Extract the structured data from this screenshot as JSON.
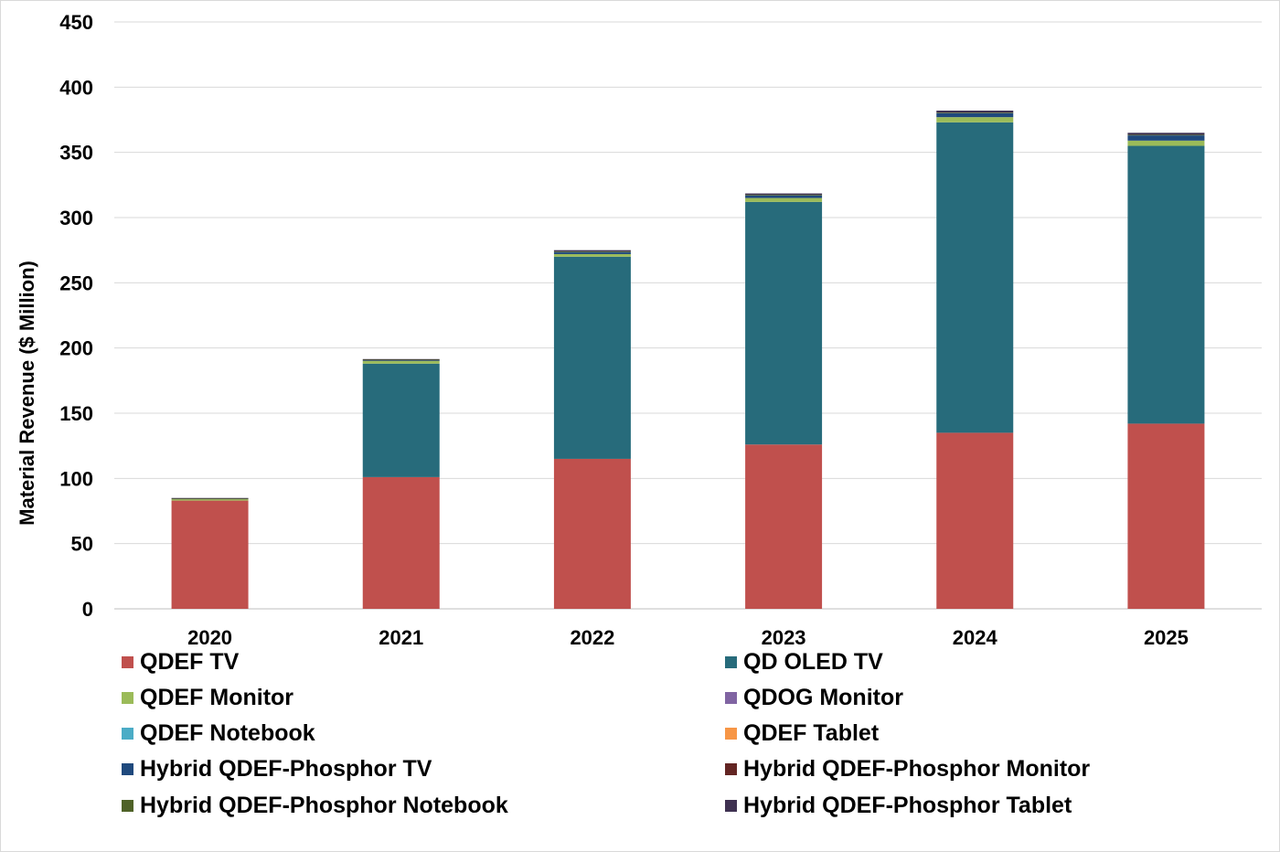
{
  "chart_data": {
    "type": "bar",
    "stacked": true,
    "ylabel": "Material Revenue ($ Million)",
    "ylim": [
      0,
      450
    ],
    "yticks": [
      0,
      50,
      100,
      150,
      200,
      250,
      300,
      350,
      400,
      450
    ],
    "grid": true,
    "legend_position": "bottom",
    "categories": [
      "2020",
      "2021",
      "2022",
      "2023",
      "2024",
      "2025"
    ],
    "series": [
      {
        "name": "QDEF TV",
        "color": "#c0504d",
        "values": [
          83,
          101,
          115,
          126,
          135,
          142
        ]
      },
      {
        "name": "QD OLED TV",
        "color": "#276b7b",
        "values": [
          0,
          87,
          155,
          186,
          238,
          213
        ]
      },
      {
        "name": "QDEF Monitor",
        "color": "#9bbb59",
        "values": [
          1,
          2,
          2,
          3,
          4,
          4
        ]
      },
      {
        "name": "QDOG Monitor",
        "color": "#8064a2",
        "values": [
          0,
          0,
          0,
          0,
          0,
          0
        ]
      },
      {
        "name": "QDEF Notebook",
        "color": "#4bacc6",
        "values": [
          0,
          0,
          0,
          0,
          0,
          0
        ]
      },
      {
        "name": "QDEF Tablet",
        "color": "#f79646",
        "values": [
          0,
          0,
          0,
          0,
          0,
          0
        ]
      },
      {
        "name": "Hybrid QDEF-Phosphor TV",
        "color": "#1f497d",
        "values": [
          0,
          0.5,
          1.5,
          2,
          3,
          4
        ]
      },
      {
        "name": "Hybrid QDEF-Phosphor Monitor",
        "color": "#632523",
        "values": [
          0,
          0,
          0,
          0,
          0,
          0
        ]
      },
      {
        "name": "Hybrid QDEF-Phosphor Notebook",
        "color": "#4f6228",
        "values": [
          0.5,
          0.5,
          0.5,
          0.5,
          0.5,
          0.5
        ]
      },
      {
        "name": "Hybrid QDEF-Phosphor Tablet",
        "color": "#3f3151",
        "values": [
          0.5,
          0.5,
          1,
          1,
          1.5,
          1.5
        ]
      }
    ]
  }
}
